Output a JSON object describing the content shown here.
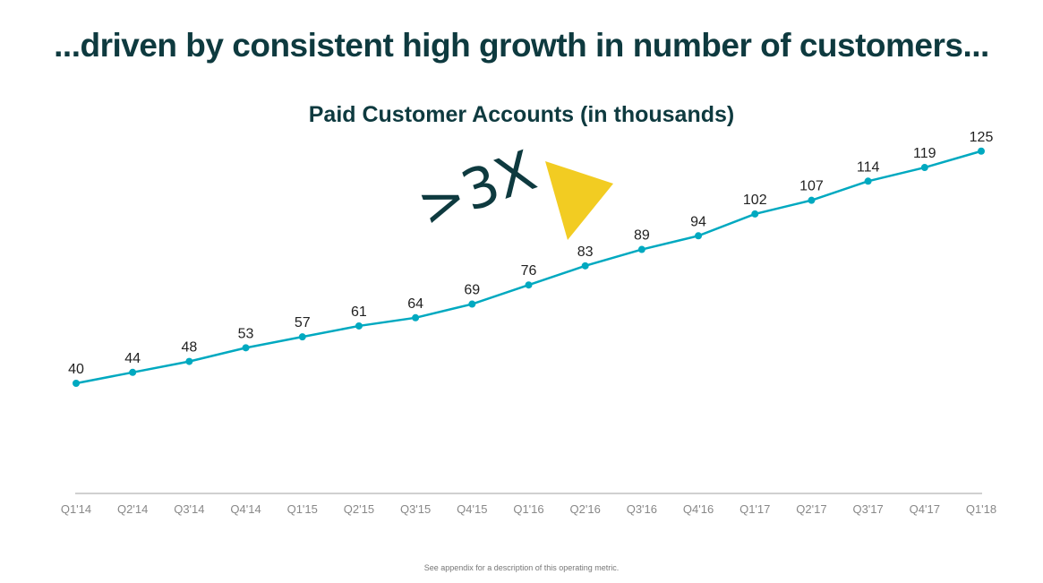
{
  "headline": "...driven by consistent high growth in number of customers...",
  "callout": ">3X",
  "footnote": "See appendix for a description of this operating metric.",
  "colors": {
    "line": "#00a9c0",
    "title": "#0e3a3f",
    "accent": "#f2cc22",
    "axis": "#b3b3b3",
    "tick": "#888888"
  },
  "chart_data": {
    "type": "line",
    "title": "Paid Customer Accounts (in thousands)",
    "xlabel": "",
    "ylabel": "",
    "ylim": [
      0,
      130
    ],
    "grid": false,
    "categories": [
      "Q1'14",
      "Q2'14",
      "Q3'14",
      "Q4'14",
      "Q1'15",
      "Q2'15",
      "Q3'15",
      "Q4'15",
      "Q1'16",
      "Q2'16",
      "Q3'16",
      "Q4'16",
      "Q1'17",
      "Q2'17",
      "Q3'17",
      "Q4'17",
      "Q1'18"
    ],
    "values": [
      40,
      44,
      48,
      53,
      57,
      61,
      64,
      69,
      76,
      83,
      89,
      94,
      102,
      107,
      114,
      119,
      125
    ]
  }
}
